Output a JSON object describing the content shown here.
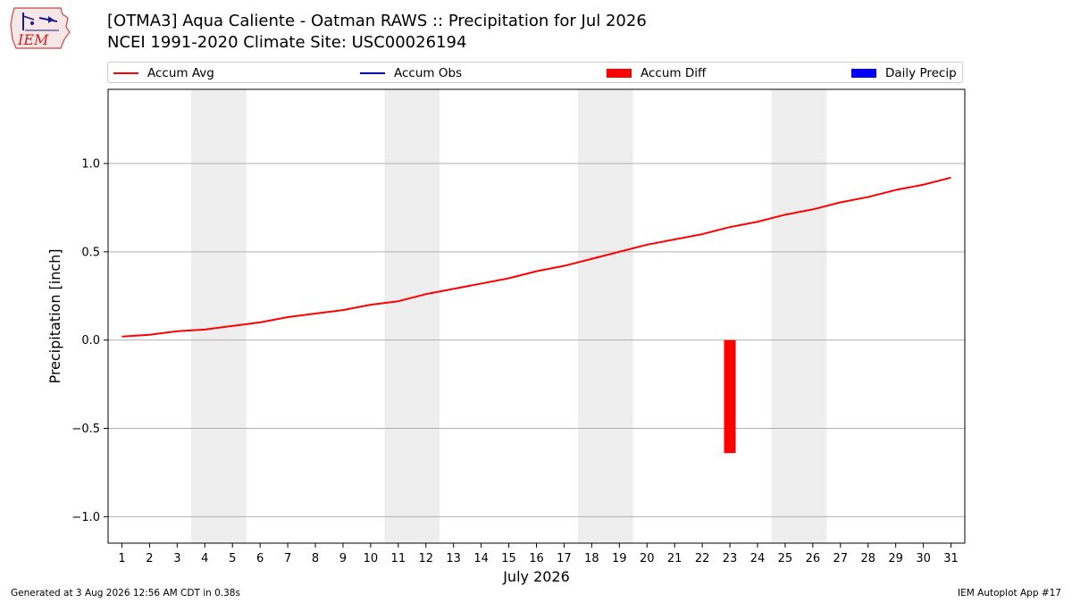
{
  "header": {
    "title_line1": "[OTMA3] Aqua Caliente - Oatman RAWS :: Precipitation for Jul 2026",
    "title_line2": "NCEI 1991-2020 Climate Site: USC00026194"
  },
  "logo": {
    "text": "IEM",
    "icon": "iem-logo-icon"
  },
  "legend": {
    "items": [
      {
        "label": "Accum Avg",
        "color": "#ff0000",
        "kind": "line"
      },
      {
        "label": "Accum Obs",
        "color": "#0000ff",
        "kind": "line"
      },
      {
        "label": "Accum Diff",
        "color": "#ff0000",
        "kind": "bar"
      },
      {
        "label": "Daily Precip",
        "color": "#0000ff",
        "kind": "bar"
      }
    ]
  },
  "chart_data": {
    "type": "line",
    "xlabel": "July 2026",
    "ylabel": "Precipitation [inch]",
    "x": [
      1,
      2,
      3,
      4,
      5,
      6,
      7,
      8,
      9,
      10,
      11,
      12,
      13,
      14,
      15,
      16,
      17,
      18,
      19,
      20,
      21,
      22,
      23,
      24,
      25,
      26,
      27,
      28,
      29,
      30,
      31
    ],
    "xlim": [
      0.5,
      31.5
    ],
    "ylim": [
      -1.15,
      1.42
    ],
    "yticks": [
      -1.0,
      -0.5,
      0.0,
      0.5,
      1.0
    ],
    "ytick_labels": [
      "−1.0",
      "−0.5",
      "0.0",
      "0.5",
      "1.0"
    ],
    "grid": "horizontal",
    "weekend_shading": [
      [
        3.5,
        5.5
      ],
      [
        10.5,
        12.5
      ],
      [
        17.5,
        19.5
      ],
      [
        24.5,
        26.5
      ]
    ],
    "weekend_color": "#eeeeee",
    "series": [
      {
        "name": "Accum Avg",
        "type": "line",
        "color": "#ff0000",
        "values": [
          0.02,
          0.03,
          0.05,
          0.06,
          0.08,
          0.1,
          0.13,
          0.15,
          0.17,
          0.2,
          0.22,
          0.26,
          0.29,
          0.32,
          0.35,
          0.39,
          0.42,
          0.46,
          0.5,
          0.54,
          0.57,
          0.6,
          0.64,
          0.67,
          0.71,
          0.74,
          0.78,
          0.81,
          0.85,
          0.88,
          0.92
        ]
      },
      {
        "name": "Accum Diff",
        "type": "bar",
        "color": "#ff0000",
        "points": [
          {
            "x": 23,
            "value": -0.64
          }
        ]
      }
    ]
  },
  "footer": {
    "left": "Generated at 3 Aug 2026 12:56 AM CDT in 0.38s",
    "right": "IEM Autoplot App #17"
  }
}
